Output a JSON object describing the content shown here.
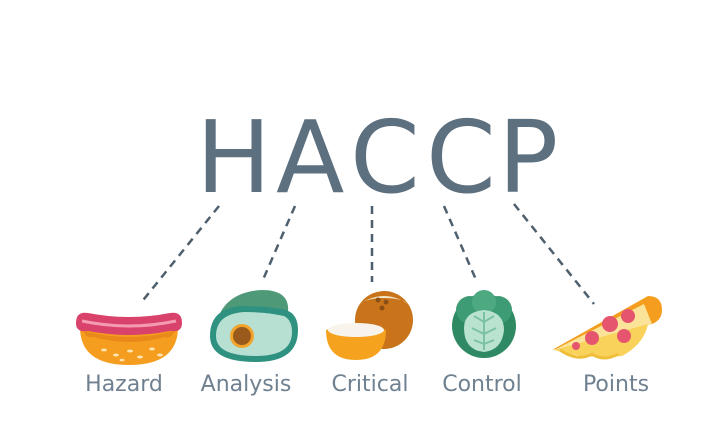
{
  "acronym": {
    "letters": [
      "H",
      "A",
      "C",
      "C",
      "P"
    ],
    "color": "#5d7080"
  },
  "terms": [
    {
      "label": "Hazard",
      "icon": "hot-dog-icon"
    },
    {
      "label": "Analysis",
      "icon": "avocado-icon"
    },
    {
      "label": "Critical",
      "icon": "coconut-icon"
    },
    {
      "label": "Control",
      "icon": "cabbage-icon"
    },
    {
      "label": "Points",
      "icon": "pizza-slice-icon"
    }
  ],
  "colors": {
    "label": "#6f8190",
    "connector": "#4e5f6d"
  }
}
